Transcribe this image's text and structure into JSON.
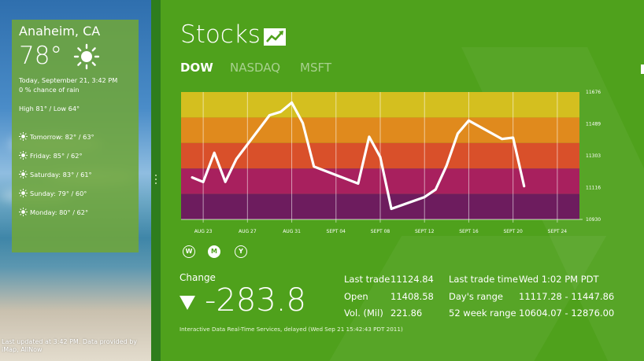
{
  "weather": {
    "city": "Anaheim, CA",
    "temperature": "78°",
    "datetime": "Today, September 21, 3:42 PM",
    "rain_chance": "0 % chance of rain",
    "high_low": "High 81° / Low 64°",
    "forecast": [
      {
        "text": "Tomorrow: 82° / 63°",
        "icon": "sun-icon"
      },
      {
        "text": "Friday: 85° / 62°",
        "icon": "sun-icon"
      },
      {
        "text": "Saturday: 83° / 61°",
        "icon": "sun-icon"
      },
      {
        "text": "Sunday: 79° / 60°",
        "icon": "sun-icon"
      },
      {
        "text": "Monday: 80° / 62°",
        "icon": "sun-icon"
      }
    ],
    "updated": "Last updated at 3:42 PM. Data provided by iMap, AllNow"
  },
  "stocks": {
    "title": "Stocks",
    "title_icon": "stock-chart-icon",
    "tabs": [
      {
        "label": "DOW",
        "active": true
      },
      {
        "label": "NASDAQ",
        "active": false
      },
      {
        "label": "MSFT",
        "active": false
      }
    ],
    "ranges": [
      {
        "label": "W",
        "selected": false
      },
      {
        "label": "M",
        "selected": true
      },
      {
        "label": "Y",
        "selected": false
      }
    ],
    "change_label": "Change",
    "change_value": "-283.8",
    "change_direction_icon": "down-triangle-icon",
    "stats": [
      {
        "key": "Last trade",
        "value": "11124.84"
      },
      {
        "key": "Open",
        "value": "11408.58"
      },
      {
        "key": "Vol. (Mil)",
        "value": "221.86"
      },
      {
        "key": "Last trade time",
        "value": "Wed 1:02 PM PDT"
      },
      {
        "key": "Day's range",
        "value": "11117.28 - 11447.86"
      },
      {
        "key": "52 week range",
        "value": "10604.07 - 12876.00"
      }
    ],
    "source": "Interactive Data Real-Time Services, delayed (Wed Sep 21 15:42:43 PDT 2011)",
    "colors": {
      "background": "#4fa11c",
      "bands": [
        "#d4bf1f",
        "#e08a1d",
        "#d9502a",
        "#a8205e",
        "#6d1c5e"
      ],
      "line": "#ffffff"
    }
  },
  "chart_data": {
    "type": "line",
    "x_ticks": [
      "AUG 23",
      "AUG 27",
      "AUG 31",
      "SEPT 04",
      "SEPT 08",
      "SEPT 12",
      "SEPT 16",
      "SEPT 20",
      "SEPT 24"
    ],
    "y_ticks": [
      "11676",
      "11489",
      "11303",
      "11116",
      "10930"
    ],
    "ylim": [
      10930,
      11676
    ],
    "x_range": [
      "Aug 21",
      "Sep 26"
    ],
    "grid": true,
    "series": [
      {
        "x": [
          "Aug 22",
          "Aug 23",
          "Aug 24",
          "Aug 25",
          "Aug 26",
          "Aug 29",
          "Aug 30",
          "Aug 31",
          "Sep 01",
          "Sep 02",
          "Sep 06",
          "Sep 07",
          "Sep 08",
          "Sep 09",
          "Sep 12",
          "Sep 13",
          "Sep 14",
          "Sep 15",
          "Sep 16",
          "Sep 19",
          "Sep 20",
          "Sep 21"
        ],
        "values": [
          11176,
          11149,
          11320,
          11150,
          11284,
          11540,
          11560,
          11614,
          11494,
          11240,
          11140,
          11414,
          11295,
          10992,
          11061,
          11105,
          11246,
          11433,
          11509,
          11401,
          11409,
          11125
        ]
      }
    ]
  }
}
